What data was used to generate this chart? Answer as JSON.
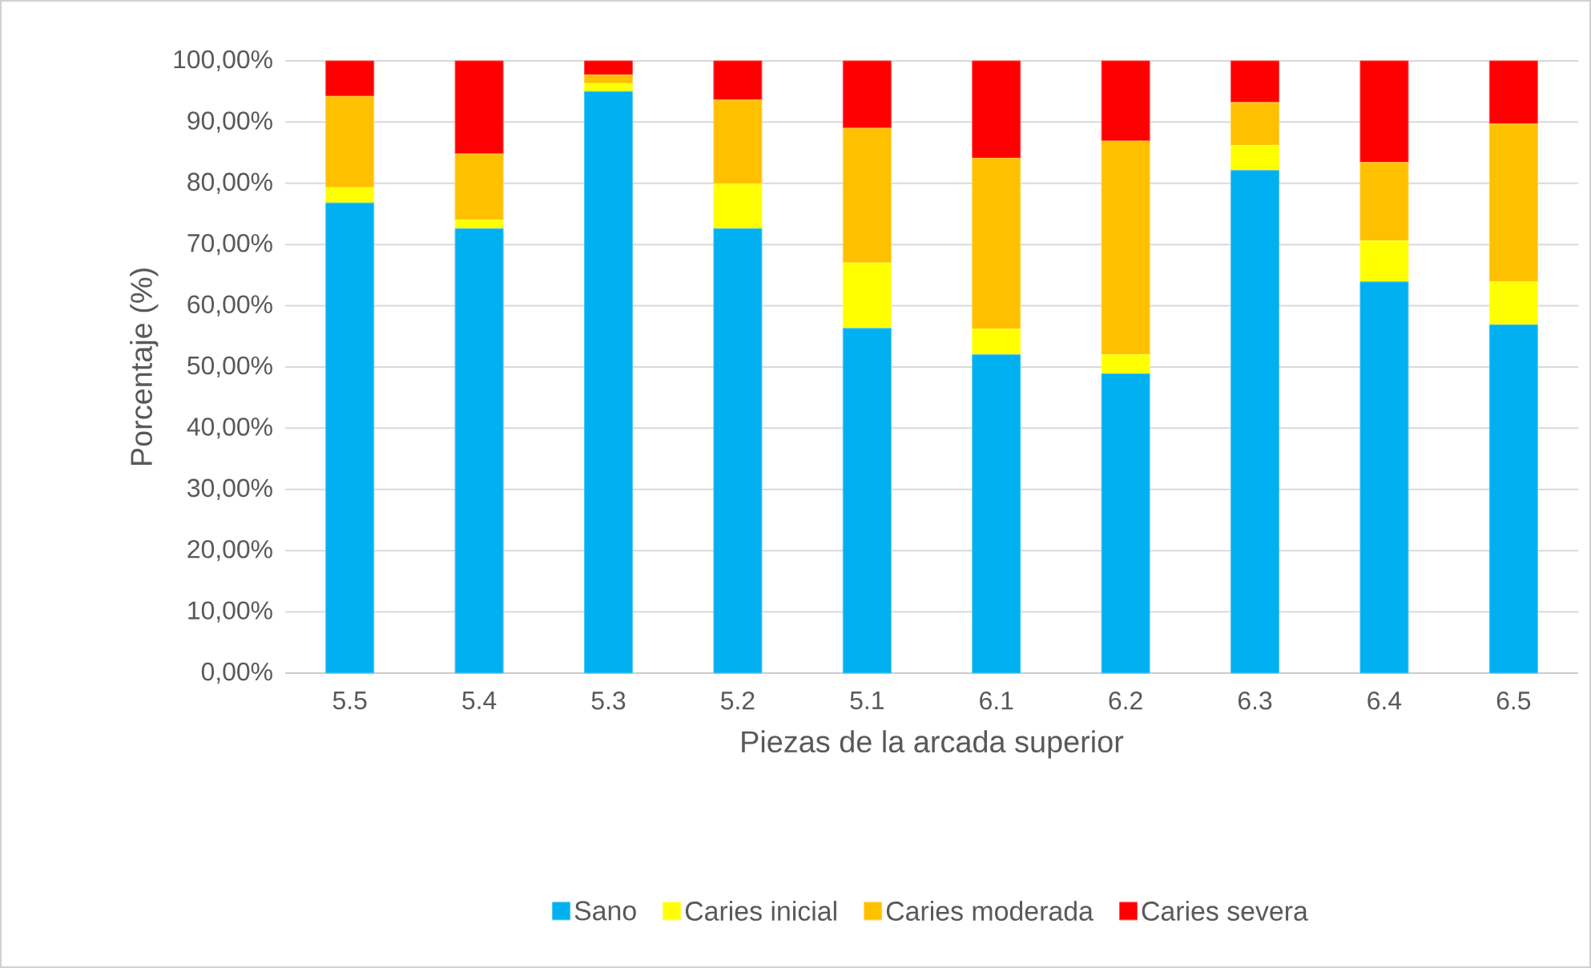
{
  "chart_data": {
    "type": "bar",
    "stacked": true,
    "xlabel": "Piezas de la arcada superior",
    "ylabel": "Porcentaje (%)",
    "categories": [
      "5.5",
      "5.4",
      "5.3",
      "5.2",
      "5.1",
      "6.1",
      "6.2",
      "6.3",
      "6.4",
      "6.5"
    ],
    "series": [
      {
        "name": "Sano",
        "color": "#00b0f0",
        "values": [
          76.8,
          72.6,
          95.0,
          72.6,
          56.3,
          52.0,
          48.9,
          82.1,
          63.9,
          56.9
        ]
      },
      {
        "name": "Caries inicial",
        "color": "#ffff00",
        "values": [
          2.5,
          1.4,
          1.3,
          7.3,
          10.7,
          4.2,
          3.1,
          4.1,
          6.7,
          7.0
        ]
      },
      {
        "name": "Caries moderada",
        "color": "#ffc000",
        "values": [
          14.9,
          10.8,
          1.4,
          13.7,
          22.0,
          27.9,
          34.9,
          7.0,
          12.8,
          25.8
        ]
      },
      {
        "name": "Caries severa",
        "color": "#ff0000",
        "values": [
          5.8,
          15.2,
          2.3,
          6.4,
          11.0,
          15.9,
          13.1,
          6.8,
          16.6,
          10.3
        ]
      }
    ],
    "ylim": [
      0,
      100
    ],
    "yticks": [
      {
        "value": 0,
        "label": "0,00%"
      },
      {
        "value": 10,
        "label": "10,00%"
      },
      {
        "value": 20,
        "label": "20,00%"
      },
      {
        "value": 30,
        "label": "30,00%"
      },
      {
        "value": 40,
        "label": "40,00%"
      },
      {
        "value": 50,
        "label": "50,00%"
      },
      {
        "value": 60,
        "label": "60,00%"
      },
      {
        "value": 70,
        "label": "70,00%"
      },
      {
        "value": 80,
        "label": "80,00%"
      },
      {
        "value": 90,
        "label": "90,00%"
      },
      {
        "value": 100,
        "label": "100,00%"
      }
    ],
    "grid": "y",
    "legend": "bottom"
  }
}
